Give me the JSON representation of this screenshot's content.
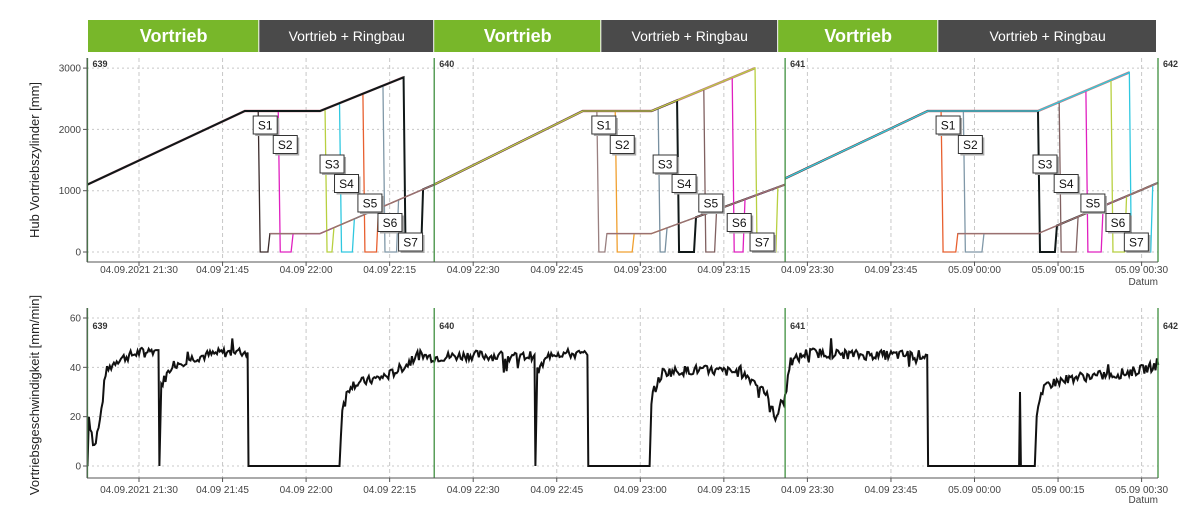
{
  "phases": [
    {
      "label": "Vortrieb",
      "type": "advance",
      "from": "04.09 21:20:45",
      "to": "04.09 21:51:36"
    },
    {
      "label": "Vortrieb + Ringbau",
      "type": "ring",
      "from": "04.09 21:51:36",
      "to": "04.09 22:23:00"
    },
    {
      "label": "Vortrieb",
      "type": "advance",
      "from": "04.09 22:23:00",
      "to": "04.09 22:53:00"
    },
    {
      "label": "Vortrieb + Ringbau",
      "type": "ring",
      "from": "04.09 22:53:00",
      "to": "04.09 23:24:45"
    },
    {
      "label": "Vortrieb",
      "type": "advance",
      "from": "04.09 23:24:45",
      "to": "04.09 23:53:30"
    },
    {
      "label": "Vortrieb + Ringbau",
      "type": "ring",
      "from": "04.09 23:53:30",
      "to": "05.09 00:33:00"
    }
  ],
  "colors": {
    "advance": "#78b72a",
    "ring": "#4a4a4a",
    "ring_marker": "#3f8f3f",
    "speed": "#111111",
    "grid": "#c8c8c8"
  },
  "chart_data": [
    {
      "type": "line",
      "ylabel": "Hub Vortriebszylinder [mm]",
      "xlabel": "Datum",
      "ylim": [
        0,
        3000
      ],
      "xlim": [
        "04.09 21:20:45",
        "05.09 00:33:00"
      ],
      "yticks": [
        "0",
        "1000",
        "2000",
        "3000"
      ],
      "ytick_values": [
        0,
        1000,
        2000,
        3000
      ],
      "xticks": [
        {
          "t": "04.09 21:30:00",
          "label": "04.09.2021 21:30"
        },
        {
          "t": "04.09 21:45:00",
          "label": "04.09 21:45"
        },
        {
          "t": "04.09 22:00:00",
          "label": "04.09 22:00"
        },
        {
          "t": "04.09 22:15:00",
          "label": "04.09 22:15"
        },
        {
          "t": "04.09 22:30:00",
          "label": "04.09 22:30"
        },
        {
          "t": "04.09 22:45:00",
          "label": "04.09 22:45"
        },
        {
          "t": "04.09 23:00:00",
          "label": "04.09 23:00"
        },
        {
          "t": "04.09 23:15:00",
          "label": "04.09 23:15"
        },
        {
          "t": "04.09 23:30:00",
          "label": "04.09 23:30"
        },
        {
          "t": "04.09 23:45:00",
          "label": "04.09 23:45"
        },
        {
          "t": "05.09 00:00:00",
          "label": "05.09 00:00"
        },
        {
          "t": "05.09 00:15:00",
          "label": "05.09 00:15"
        },
        {
          "t": "05.09 00:30:00",
          "label": "05.09 00:30"
        }
      ],
      "grid": true,
      "ring_markers": [
        {
          "label": "639",
          "t": "04.09 21:20:45"
        },
        {
          "label": "640",
          "t": "04.09 22:23:00"
        },
        {
          "label": "641",
          "t": "04.09 23:26:00"
        },
        {
          "label": "642",
          "t": "05.09 00:33:00"
        }
      ],
      "cycles": [
        {
          "upper": [
            [
              "04.09 21:20:45",
              1100
            ],
            [
              "04.09 21:49:00",
              2300
            ],
            [
              "04.09 22:02:30",
              2300
            ],
            [
              "04.09 22:17:30",
              2850
            ]
          ],
          "lower": [
            [
              "04.09 21:53:30",
              300
            ],
            [
              "04.09 22:02:30",
              300
            ],
            [
              "04.09 22:23:00",
              1100
            ]
          ],
          "cylinders": [
            {
              "name": "S1",
              "color": "#3a2a2a",
              "drop": "04.09 21:51:24",
              "back": "04.09 21:53:30"
            },
            {
              "name": "S2",
              "color": "#e020c0",
              "drop": "04.09 21:55:00",
              "back": "04.09 21:57:40"
            },
            {
              "name": "S3",
              "color": "#b8d040",
              "drop": "04.09 22:03:24",
              "back": "04.09 22:05:00"
            },
            {
              "name": "S4",
              "color": "#30c8e0",
              "drop": "04.09 22:06:00",
              "back": "04.09 22:08:40"
            },
            {
              "name": "S5",
              "color": "#e86030",
              "drop": "04.09 22:10:12",
              "back": "04.09 22:13:00"
            },
            {
              "name": "S6",
              "color": "#8098a8",
              "drop": "04.09 22:13:48",
              "back": "04.09 22:16:36"
            },
            {
              "name": "S7",
              "color": "#101818",
              "drop": "04.09 22:17:30",
              "back": "04.09 22:21:00"
            }
          ]
        },
        {
          "upper": [
            [
              "04.09 22:23:00",
              1100
            ],
            [
              "04.09 22:49:40",
              2300
            ],
            [
              "04.09 23:02:00",
              2300
            ],
            [
              "04.09 23:20:36",
              3000
            ]
          ],
          "lower": [
            [
              "04.09 22:54:00",
              300
            ],
            [
              "04.09 23:02:00",
              300
            ],
            [
              "04.09 23:26:00",
              1100
            ]
          ],
          "cylinders": [
            {
              "name": "S1",
              "color": "#9a8080",
              "drop": "04.09 22:52:12",
              "back": "04.09 22:54:00"
            },
            {
              "name": "S2",
              "color": "#f0a030",
              "drop": "04.09 22:55:30",
              "back": "04.09 22:58:54"
            },
            {
              "name": "S3",
              "color": "#7890a0",
              "drop": "04.09 23:03:12",
              "back": "04.09 23:04:48"
            },
            {
              "name": "S4",
              "color": "#101818",
              "drop": "04.09 23:06:36",
              "back": "04.09 23:10:00"
            },
            {
              "name": "S5",
              "color": "#806060",
              "drop": "04.09 23:11:24",
              "back": "04.09 23:13:42"
            },
            {
              "name": "S6",
              "color": "#e020c0",
              "drop": "04.09 23:16:30",
              "back": "04.09 23:18:48"
            },
            {
              "name": "S7",
              "color": "#b8d040",
              "drop": "04.09 23:20:36",
              "back": "04.09 23:24:42"
            }
          ]
        },
        {
          "upper": [
            [
              "04.09 23:26:00",
              1200
            ],
            [
              "04.09 23:51:36",
              2300
            ],
            [
              "05.09 00:11:24",
              2300
            ],
            [
              "05.09 00:27:48",
              2930
            ]
          ],
          "lower": [
            [
              "04.09 23:57:00",
              300
            ],
            [
              "05.09 00:11:24",
              300
            ],
            [
              "05.09 00:33:00",
              1130
            ]
          ],
          "cylinders": [
            {
              "name": "S1",
              "color": "#e86030",
              "drop": "04.09 23:54:00",
              "back": "04.09 23:57:00"
            },
            {
              "name": "S2",
              "color": "#8098a8",
              "drop": "04.09 23:58:00",
              "back": "05.09 00:01:42"
            },
            {
              "name": "S3",
              "color": "#101818",
              "drop": "05.09 00:11:24",
              "back": "05.09 00:14:48"
            },
            {
              "name": "S4",
              "color": "#806060",
              "drop": "05.09 00:15:12",
              "back": "05.09 00:18:36"
            },
            {
              "name": "S5",
              "color": "#e020c0",
              "drop": "05.09 00:20:00",
              "back": "05.09 00:23:06"
            },
            {
              "name": "S6",
              "color": "#b8d040",
              "drop": "05.09 00:24:30",
              "back": "05.09 00:27:18"
            },
            {
              "name": "S7",
              "color": "#30c8e0",
              "drop": "05.09 00:27:48",
              "back": "05.09 00:32:00"
            }
          ]
        }
      ]
    },
    {
      "type": "line",
      "ylabel": "Vortriebsgeschwindigkeit [mm/min]",
      "xlabel": "Datum",
      "ylim": [
        0,
        60
      ],
      "yticks": [
        "0",
        "20",
        "40",
        "60"
      ],
      "ytick_values": [
        0,
        20,
        40,
        60
      ],
      "grid": true,
      "ring_markers": [
        {
          "label": "639",
          "t": "04.09 21:20:45"
        },
        {
          "label": "640",
          "t": "04.09 22:23:00"
        },
        {
          "label": "641",
          "t": "04.09 23:26:00"
        },
        {
          "label": "642",
          "t": "05.09 00:33:00"
        }
      ],
      "series": [
        {
          "points": [
            [
              "04.09 21:20:45",
              0
            ],
            [
              "04.09 21:21:00",
              20
            ],
            [
              "04.09 21:22:00",
              8
            ],
            [
              "04.09 21:23:00",
              18
            ],
            [
              "04.09 21:24:00",
              38
            ],
            [
              "04.09 21:26:00",
              43
            ],
            [
              "04.09 21:30:00",
              46
            ],
            [
              "04.09 21:33:00",
              47
            ],
            [
              "04.09 21:33:30",
              47
            ],
            [
              "04.09 21:33:40",
              0
            ],
            [
              "04.09 21:34:00",
              33
            ],
            [
              "04.09 21:36:00",
              41
            ],
            [
              "04.09 21:40:00",
              44
            ],
            [
              "04.09 21:45:00",
              46
            ],
            [
              "04.09 21:49:30",
              46
            ],
            [
              "04.09 21:49:40",
              0
            ],
            [
              "04.09 22:06:00",
              0
            ],
            [
              "04.09 22:06:30",
              24
            ],
            [
              "04.09 22:08:00",
              33
            ],
            [
              "04.09 22:12:00",
              35
            ],
            [
              "04.09 22:15:00",
              37
            ],
            [
              "04.09 22:18:00",
              41
            ],
            [
              "04.09 22:20:00",
              45
            ],
            [
              "04.09 22:23:00",
              44
            ],
            [
              "04.09 22:30:00",
              45
            ],
            [
              "04.09 22:38:00",
              44
            ],
            [
              "04.09 22:41:00",
              45
            ],
            [
              "04.09 22:41:10",
              0
            ],
            [
              "04.09 22:41:30",
              38
            ],
            [
              "04.09 22:44:00",
              46
            ],
            [
              "04.09 22:50:30",
              45
            ],
            [
              "04.09 22:50:40",
              0
            ],
            [
              "04.09 23:01:40",
              0
            ],
            [
              "04.09 23:02:00",
              28
            ],
            [
              "04.09 23:04:00",
              38
            ],
            [
              "04.09 23:10:00",
              39
            ],
            [
              "04.09 23:18:00",
              38
            ],
            [
              "04.09 23:22:00",
              32
            ],
            [
              "04.09 23:24:00",
              20
            ],
            [
              "04.09 23:26:00",
              28
            ],
            [
              "04.09 23:27:00",
              42
            ],
            [
              "04.09 23:30:00",
              46
            ],
            [
              "04.09 23:40:00",
              45
            ],
            [
              "04.09 23:51:30",
              45
            ],
            [
              "04.09 23:51:40",
              0
            ],
            [
              "05.09 00:08:00",
              0
            ],
            [
              "05.09 00:08:10",
              30
            ],
            [
              "05.09 00:08:20",
              0
            ],
            [
              "05.09 00:10:50",
              0
            ],
            [
              "05.09 00:11:10",
              22
            ],
            [
              "05.09 00:13:00",
              33
            ],
            [
              "05.09 00:18:00",
              36
            ],
            [
              "05.09 00:25:00",
              37
            ],
            [
              "05.09 00:30:00",
              39
            ],
            [
              "05.09 00:33:00",
              41
            ]
          ]
        }
      ]
    }
  ]
}
